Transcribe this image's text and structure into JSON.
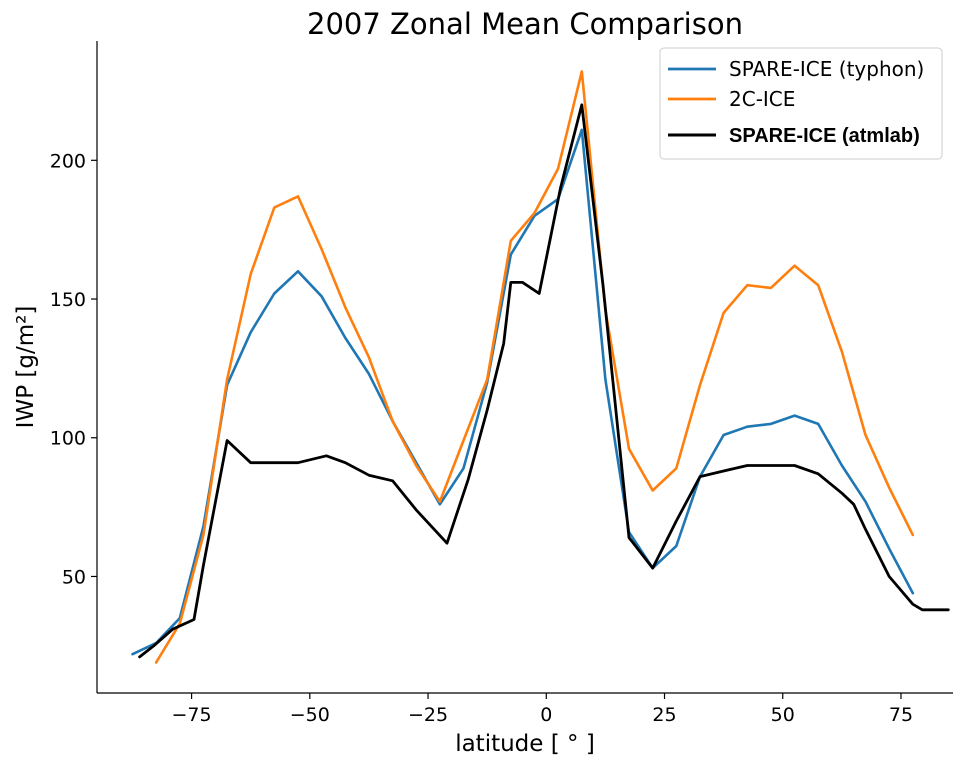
{
  "chart_data": {
    "type": "line",
    "title": "2007 Zonal Mean Comparison",
    "xlabel": "latitude [ ° ]",
    "ylabel": "IWP [g/m²]",
    "xlim": [
      -95,
      86
    ],
    "ylim": [
      8,
      243
    ],
    "xticks": [
      -75,
      -50,
      -25,
      0,
      25,
      50,
      75
    ],
    "xtick_labels": [
      "−75",
      "−50",
      "−25",
      "0",
      "25",
      "50",
      "75"
    ],
    "yticks": [
      50,
      100,
      150,
      200
    ],
    "ytick_labels": [
      "50",
      "100",
      "150",
      "200"
    ],
    "grid": false,
    "legend_position": "top-right",
    "series": [
      {
        "name": "SPARE-ICE (typhon)",
        "color": "#1f77b4",
        "x": [
          -87.5,
          -82.5,
          -77.5,
          -72.5,
          -67.5,
          -62.5,
          -57.5,
          -52.5,
          -47.5,
          -42.5,
          -37.5,
          -32.5,
          -27.5,
          -22.5,
          -17.5,
          -12.5,
          -7.5,
          -2.5,
          2.5,
          7.5,
          12.5,
          17.5,
          22.5,
          27.5,
          32.5,
          37.5,
          42.5,
          47.5,
          52.5,
          57.5,
          62.5,
          67.5,
          72.5,
          77.5
        ],
        "y": [
          22,
          26,
          35,
          68,
          119,
          138,
          152,
          160,
          151,
          136,
          123,
          106,
          91,
          76,
          89,
          120,
          166,
          180,
          186,
          211,
          121,
          66,
          53,
          61,
          86,
          101,
          104,
          105,
          108,
          105,
          90,
          77,
          60,
          44
        ]
      },
      {
        "name": "2C-ICE",
        "color": "#ff7f0e",
        "x": [
          -82.5,
          -77.5,
          -72.5,
          -67.5,
          -62.5,
          -57.5,
          -52.5,
          -47.5,
          -42.5,
          -37.5,
          -32.5,
          -27.5,
          -22.5,
          -17.5,
          -12.5,
          -7.5,
          -2.5,
          2.5,
          7.5,
          12.5,
          17.5,
          22.5,
          27.5,
          32.5,
          37.5,
          42.5,
          47.5,
          52.5,
          57.5,
          62.5,
          67.5,
          72.5,
          77.5
        ],
        "y": [
          19,
          33,
          65,
          121,
          159,
          183,
          187,
          168,
          147,
          129,
          106,
          90,
          77,
          99,
          121,
          171,
          181,
          197,
          232,
          146,
          96,
          81,
          89,
          119,
          145,
          155,
          154,
          162,
          155,
          131,
          101,
          82,
          65
        ]
      },
      {
        "name": "SPARE-ICE (atmlab)",
        "color": "#000000",
        "x": [
          -86,
          -83,
          -79,
          -74.5,
          -72.5,
          -67.5,
          -62.5,
          -57.5,
          -52.5,
          -46.5,
          -42.5,
          -37.5,
          -32.5,
          -27.5,
          -21,
          -16.5,
          -12.5,
          -9,
          -7.5,
          -5,
          -1.5,
          3,
          7.5,
          12,
          17.5,
          22.5,
          27.5,
          32.5,
          37.5,
          42.5,
          47.5,
          52.5,
          57.5,
          62.5,
          65,
          67.5,
          72.5,
          77.5,
          79.5,
          85
        ],
        "y": [
          21,
          25,
          31,
          34.5,
          54,
          99,
          91,
          91,
          91,
          93.5,
          91,
          86.5,
          84.5,
          74,
          62,
          85,
          110,
          134,
          156,
          156,
          152,
          190,
          220,
          155,
          64,
          53,
          70,
          86,
          88,
          90,
          90,
          90,
          87,
          80,
          76,
          67,
          50,
          40,
          38,
          38
        ]
      }
    ]
  }
}
